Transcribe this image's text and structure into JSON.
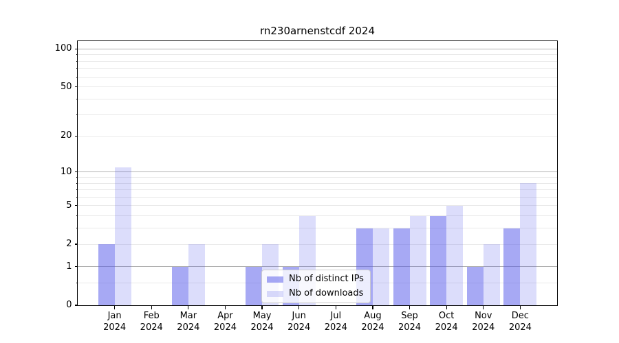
{
  "figure": {
    "background": "#ffffff",
    "axis_color": "#000000",
    "text_color": "#000000"
  },
  "chart_data": {
    "type": "bar",
    "title": "rn230arnenstcdf 2024",
    "year_label": "2024",
    "categories": [
      "Jan",
      "Feb",
      "Mar",
      "Apr",
      "May",
      "Jun",
      "Jul",
      "Aug",
      "Sep",
      "Oct",
      "Nov",
      "Dec"
    ],
    "series": [
      {
        "key": "distinct-ips",
        "name": "Nb of distinct IPs",
        "base_color": "#4f53ea",
        "fill_alpha": 0.5,
        "values": [
          2,
          0,
          1,
          0,
          1,
          1,
          0,
          3,
          3,
          4,
          1,
          3
        ]
      },
      {
        "key": "downloads",
        "name": "Nb of downloads",
        "base_color": "#4f53ea",
        "fill_alpha": 0.2,
        "values": [
          11,
          0,
          2,
          0,
          2,
          4,
          0,
          3,
          4,
          5,
          2,
          8
        ]
      }
    ],
    "xlabel": "",
    "ylabel": "",
    "yscale": "log1p",
    "ylim": [
      0,
      115
    ],
    "y_tick_values": [
      0,
      1,
      2,
      5,
      10,
      20,
      50,
      100
    ],
    "y_tick_labels": [
      "0",
      "1",
      "2",
      "5",
      "10",
      "20",
      "50",
      "100"
    ],
    "grid": {
      "enabled": true,
      "major_values": [
        1,
        10,
        100
      ],
      "minor_values": [
        0.5,
        2,
        3,
        4,
        5,
        6,
        7,
        8,
        9,
        20,
        30,
        40,
        50,
        60,
        70,
        80,
        90
      ],
      "major_color": "#b0b0b0",
      "minor_color": "#e9e9e9"
    },
    "legend": {
      "position": "inside bottom-center of plot",
      "entries": [
        "Nb of distinct IPs",
        "Nb of downloads"
      ]
    }
  }
}
